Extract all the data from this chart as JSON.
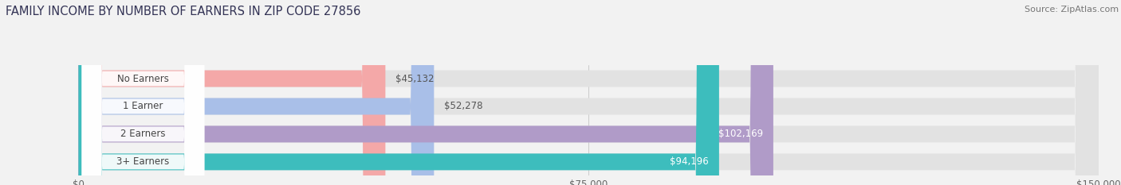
{
  "title": "FAMILY INCOME BY NUMBER OF EARNERS IN ZIP CODE 27856",
  "source": "Source: ZipAtlas.com",
  "categories": [
    "No Earners",
    "1 Earner",
    "2 Earners",
    "3+ Earners"
  ],
  "values": [
    45132,
    52278,
    102169,
    94196
  ],
  "bar_colors": [
    "#f4a8a8",
    "#a9bfe8",
    "#b09bc8",
    "#3dbdbd"
  ],
  "label_colors": [
    "#555555",
    "#555555",
    "#ffffff",
    "#ffffff"
  ],
  "max_value": 150000,
  "x_ticks": [
    0,
    75000,
    150000
  ],
  "x_tick_labels": [
    "$0",
    "$75,000",
    "$150,000"
  ],
  "background_color": "#f2f2f2",
  "bar_background_color": "#e2e2e2",
  "value_labels": [
    "$45,132",
    "$52,278",
    "$102,169",
    "$94,196"
  ],
  "title_fontsize": 10.5,
  "source_fontsize": 8,
  "bar_height": 0.6,
  "label_fontsize": 8.5,
  "value_fontsize": 8.5
}
